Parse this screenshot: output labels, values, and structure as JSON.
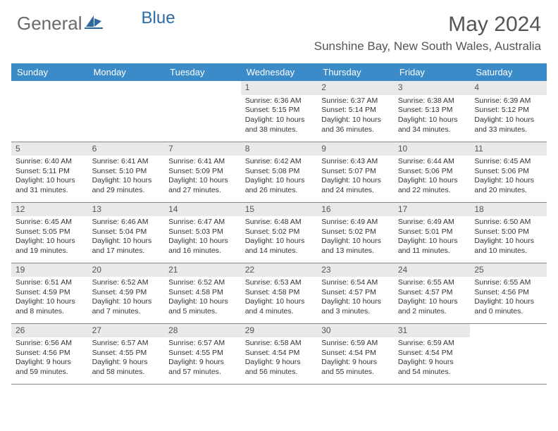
{
  "logo": {
    "text1": "General",
    "text2": "Blue"
  },
  "title": "May 2024",
  "location": "Sunshine Bay, New South Wales, Australia",
  "colors": {
    "header_bg": "#3b8bc9",
    "header_text": "#ffffff",
    "daynum_bg": "#e9e9e9",
    "text": "#333333",
    "title_text": "#555555",
    "logo_gray": "#6a6a6a",
    "logo_blue": "#2d6aa3",
    "border": "#888888"
  },
  "weekdays": [
    "Sunday",
    "Monday",
    "Tuesday",
    "Wednesday",
    "Thursday",
    "Friday",
    "Saturday"
  ],
  "weeks": [
    [
      null,
      null,
      null,
      {
        "n": "1",
        "sunrise": "6:36 AM",
        "sunset": "5:15 PM",
        "dh": "10",
        "dm": "38"
      },
      {
        "n": "2",
        "sunrise": "6:37 AM",
        "sunset": "5:14 PM",
        "dh": "10",
        "dm": "36"
      },
      {
        "n": "3",
        "sunrise": "6:38 AM",
        "sunset": "5:13 PM",
        "dh": "10",
        "dm": "34"
      },
      {
        "n": "4",
        "sunrise": "6:39 AM",
        "sunset": "5:12 PM",
        "dh": "10",
        "dm": "33"
      }
    ],
    [
      {
        "n": "5",
        "sunrise": "6:40 AM",
        "sunset": "5:11 PM",
        "dh": "10",
        "dm": "31"
      },
      {
        "n": "6",
        "sunrise": "6:41 AM",
        "sunset": "5:10 PM",
        "dh": "10",
        "dm": "29"
      },
      {
        "n": "7",
        "sunrise": "6:41 AM",
        "sunset": "5:09 PM",
        "dh": "10",
        "dm": "27"
      },
      {
        "n": "8",
        "sunrise": "6:42 AM",
        "sunset": "5:08 PM",
        "dh": "10",
        "dm": "26"
      },
      {
        "n": "9",
        "sunrise": "6:43 AM",
        "sunset": "5:07 PM",
        "dh": "10",
        "dm": "24"
      },
      {
        "n": "10",
        "sunrise": "6:44 AM",
        "sunset": "5:06 PM",
        "dh": "10",
        "dm": "22"
      },
      {
        "n": "11",
        "sunrise": "6:45 AM",
        "sunset": "5:06 PM",
        "dh": "10",
        "dm": "20"
      }
    ],
    [
      {
        "n": "12",
        "sunrise": "6:45 AM",
        "sunset": "5:05 PM",
        "dh": "10",
        "dm": "19"
      },
      {
        "n": "13",
        "sunrise": "6:46 AM",
        "sunset": "5:04 PM",
        "dh": "10",
        "dm": "17"
      },
      {
        "n": "14",
        "sunrise": "6:47 AM",
        "sunset": "5:03 PM",
        "dh": "10",
        "dm": "16"
      },
      {
        "n": "15",
        "sunrise": "6:48 AM",
        "sunset": "5:02 PM",
        "dh": "10",
        "dm": "14"
      },
      {
        "n": "16",
        "sunrise": "6:49 AM",
        "sunset": "5:02 PM",
        "dh": "10",
        "dm": "13"
      },
      {
        "n": "17",
        "sunrise": "6:49 AM",
        "sunset": "5:01 PM",
        "dh": "10",
        "dm": "11"
      },
      {
        "n": "18",
        "sunrise": "6:50 AM",
        "sunset": "5:00 PM",
        "dh": "10",
        "dm": "10"
      }
    ],
    [
      {
        "n": "19",
        "sunrise": "6:51 AM",
        "sunset": "4:59 PM",
        "dh": "10",
        "dm": "8"
      },
      {
        "n": "20",
        "sunrise": "6:52 AM",
        "sunset": "4:59 PM",
        "dh": "10",
        "dm": "7"
      },
      {
        "n": "21",
        "sunrise": "6:52 AM",
        "sunset": "4:58 PM",
        "dh": "10",
        "dm": "5"
      },
      {
        "n": "22",
        "sunrise": "6:53 AM",
        "sunset": "4:58 PM",
        "dh": "10",
        "dm": "4"
      },
      {
        "n": "23",
        "sunrise": "6:54 AM",
        "sunset": "4:57 PM",
        "dh": "10",
        "dm": "3"
      },
      {
        "n": "24",
        "sunrise": "6:55 AM",
        "sunset": "4:57 PM",
        "dh": "10",
        "dm": "2"
      },
      {
        "n": "25",
        "sunrise": "6:55 AM",
        "sunset": "4:56 PM",
        "dh": "10",
        "dm": "0"
      }
    ],
    [
      {
        "n": "26",
        "sunrise": "6:56 AM",
        "sunset": "4:56 PM",
        "dh": "9",
        "dm": "59"
      },
      {
        "n": "27",
        "sunrise": "6:57 AM",
        "sunset": "4:55 PM",
        "dh": "9",
        "dm": "58"
      },
      {
        "n": "28",
        "sunrise": "6:57 AM",
        "sunset": "4:55 PM",
        "dh": "9",
        "dm": "57"
      },
      {
        "n": "29",
        "sunrise": "6:58 AM",
        "sunset": "4:54 PM",
        "dh": "9",
        "dm": "56"
      },
      {
        "n": "30",
        "sunrise": "6:59 AM",
        "sunset": "4:54 PM",
        "dh": "9",
        "dm": "55"
      },
      {
        "n": "31",
        "sunrise": "6:59 AM",
        "sunset": "4:54 PM",
        "dh": "9",
        "dm": "54"
      },
      null
    ]
  ]
}
